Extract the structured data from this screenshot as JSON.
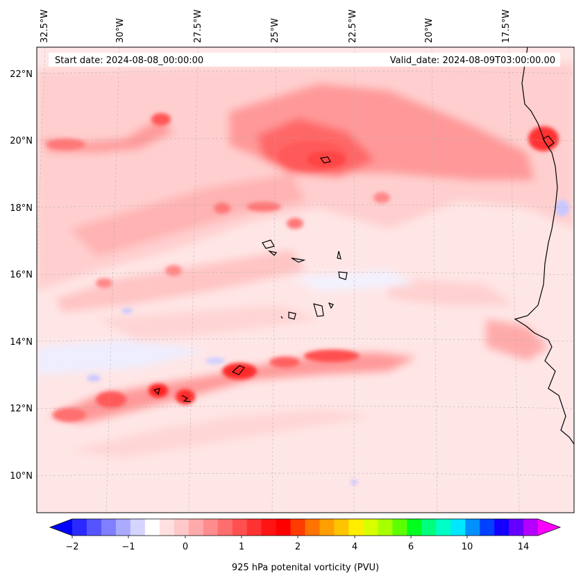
{
  "map": {
    "start_date": "Start date: 2024-08-08_00:00:00",
    "valid_date": "Valid_date: 2024-08-09T03:00:00.00",
    "lon_labels": [
      "32.5°W",
      "30°W",
      "27.5°W",
      "25°W",
      "22.5°W",
      "20°W",
      "17.5°W"
    ],
    "lat_labels": [
      "22°N",
      "20°N",
      "18°N",
      "16°N",
      "14°N",
      "12°N",
      "10°N"
    ],
    "extent": {
      "lon_min": -33.0,
      "lon_max": -15.5,
      "lat_min": 8.9,
      "lat_max": 22.8
    },
    "gridlines": true
  },
  "colorbar": {
    "label": "925 hPa potenital vorticity (PVU)",
    "tick_labels": [
      "−2",
      "−1",
      "0",
      "1",
      "2",
      "4",
      "6",
      "10",
      "14"
    ],
    "extend": "both",
    "colors": [
      "#0000ff",
      "#2a2aff",
      "#5555ff",
      "#7f7fff",
      "#aaaaff",
      "#d4d4ff",
      "#ffffff",
      "#ffe0e0",
      "#ffc8c8",
      "#ffaaaa",
      "#ff8c8c",
      "#ff6e6e",
      "#ff5050",
      "#ff3232",
      "#ff1414",
      "#ff0000",
      "#ff3c00",
      "#ff7300",
      "#ff9e00",
      "#ffc400",
      "#ffee00",
      "#d8ff00",
      "#a8ff00",
      "#5cff00",
      "#00ff20",
      "#00ff7c",
      "#00ffc4",
      "#00e8ff",
      "#0090ff",
      "#0040ff",
      "#1400ff",
      "#6400ff",
      "#b400ff",
      "#ff00ff"
    ]
  }
}
